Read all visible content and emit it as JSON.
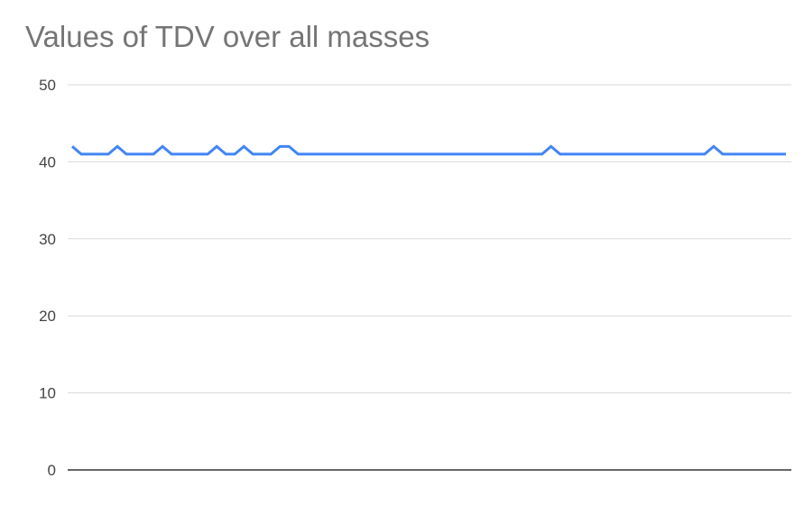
{
  "chart_data": {
    "type": "line",
    "title": "Values of TDV over all masses",
    "xlabel": "",
    "ylabel": "",
    "ylim": [
      0,
      50
    ],
    "yticks": [
      0,
      10,
      20,
      30,
      40,
      50
    ],
    "grid": true,
    "legend": "none",
    "series": [
      {
        "color": "#4285f4",
        "values": [
          42,
          41,
          41,
          41,
          41,
          42,
          41,
          41,
          41,
          41,
          42,
          41,
          41,
          41,
          41,
          41,
          42,
          41,
          41,
          42,
          41,
          41,
          41,
          42,
          42,
          41,
          41,
          41,
          41,
          41,
          41,
          41,
          41,
          41,
          41,
          41,
          41,
          41,
          41,
          41,
          41,
          41,
          41,
          41,
          41,
          41,
          41,
          41,
          41,
          41,
          41,
          41,
          41,
          42,
          41,
          41,
          41,
          41,
          41,
          41,
          41,
          41,
          41,
          41,
          41,
          41,
          41,
          41,
          41,
          41,
          41,
          42,
          41,
          41,
          41,
          41,
          41,
          41,
          41,
          41
        ]
      }
    ],
    "colors": {
      "line": "#4285f4",
      "grid": "#d9d9d9",
      "baseline": "#333333",
      "title": "#757575",
      "tick_text": "#444444"
    }
  }
}
